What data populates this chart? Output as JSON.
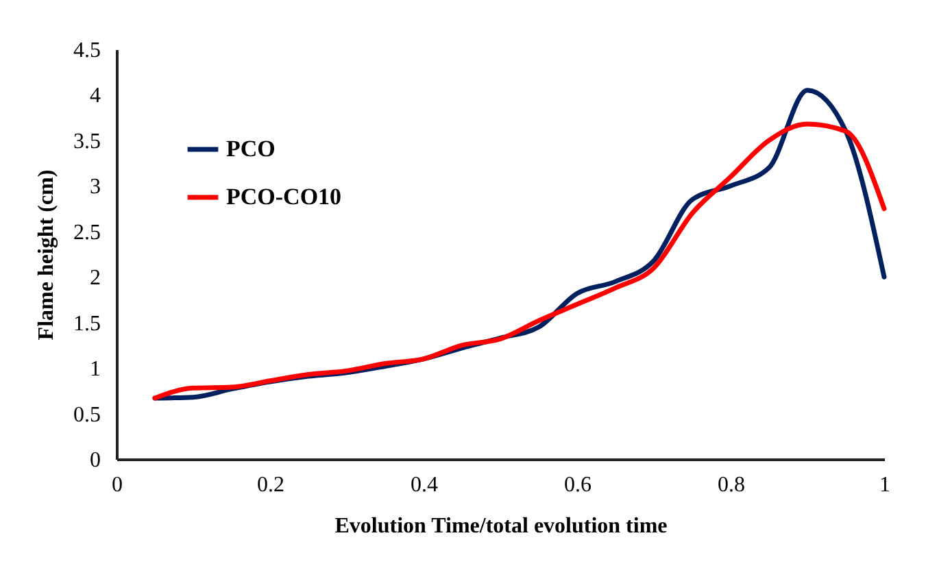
{
  "chart_data": {
    "type": "line",
    "xlabel": "Evolution Time/total evolution time",
    "ylabel": "Flame height (cm)",
    "x": [
      0.05,
      0.1,
      0.15,
      0.2,
      0.25,
      0.3,
      0.35,
      0.4,
      0.45,
      0.5,
      0.55,
      0.6,
      0.65,
      0.7,
      0.75,
      0.8,
      0.85,
      0.9,
      0.95,
      1
    ],
    "series": [
      {
        "name": "PCO",
        "color": "#002060",
        "values": [
          0.67,
          0.68,
          0.77,
          0.85,
          0.91,
          0.95,
          1.02,
          1.1,
          1.22,
          1.33,
          1.45,
          1.82,
          1.95,
          2.18,
          2.85,
          3.0,
          3.2,
          4.05,
          3.6,
          2.0
        ]
      },
      {
        "name": "PCO-CO10",
        "color": "#ff0000",
        "values": [
          0.67,
          0.78,
          0.79,
          0.86,
          0.93,
          0.97,
          1.05,
          1.1,
          1.25,
          1.32,
          1.52,
          1.7,
          1.88,
          2.1,
          2.7,
          3.1,
          3.5,
          3.68,
          3.6,
          2.75
        ]
      }
    ],
    "xlim": [
      0,
      1
    ],
    "xticks": [
      0,
      0.2,
      0.4,
      0.6,
      0.8,
      1
    ],
    "ylim": [
      0,
      4.5
    ],
    "yticks": [
      0,
      0.5,
      1,
      1.5,
      2,
      2.5,
      3,
      3.5,
      4,
      4.5
    ],
    "grid": false,
    "legend": "top left",
    "marker": "none",
    "line_style": "solid"
  }
}
